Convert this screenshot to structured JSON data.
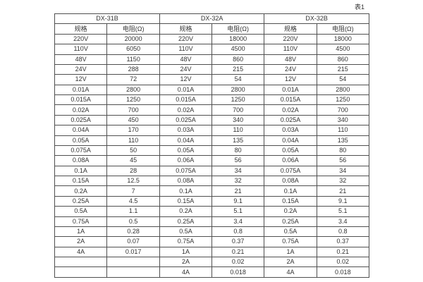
{
  "caption": "表1",
  "colors": {
    "background": "#ffffff",
    "border": "#4f4f4f",
    "text": "#333333"
  },
  "table": {
    "groups": [
      {
        "name": "DX-31B",
        "spec_header": "规格",
        "resistance_header": "电阻(Ω)"
      },
      {
        "name": "DX-32A",
        "spec_header": "规格",
        "resistance_header": "电阻(Ω)"
      },
      {
        "name": "DX-32B",
        "spec_header": "规格",
        "resistance_header": "电阻(Ω)"
      }
    ],
    "rows": [
      [
        "220V",
        "20000",
        "220V",
        "18000",
        "220V",
        "18000"
      ],
      [
        "110V",
        "6050",
        "110V",
        "4500",
        "110V",
        "4500"
      ],
      [
        "48V",
        "1150",
        "48V",
        "860",
        "48V",
        "860"
      ],
      [
        "24V",
        "288",
        "24V",
        "215",
        "24V",
        "215"
      ],
      [
        "12V",
        "72",
        "12V",
        "54",
        "12V",
        "54"
      ],
      [
        "0.01A",
        "2800",
        "0.01A",
        "2800",
        "0.01A",
        "2800"
      ],
      [
        "0.015A",
        "1250",
        "0.015A",
        "1250",
        "0.015A",
        "1250"
      ],
      [
        "0.02A",
        "700",
        "0.02A",
        "700",
        "0.02A",
        "700"
      ],
      [
        "0.025A",
        "450",
        "0.025A",
        "340",
        "0.025A",
        "340"
      ],
      [
        "0.04A",
        "170",
        "0.03A",
        "110",
        "0.03A",
        "110"
      ],
      [
        "0.05A",
        "110",
        "0.04A",
        "135",
        "0.04A",
        "135"
      ],
      [
        "0.075A",
        "50",
        "0.05A",
        "80",
        "0.05A",
        "80"
      ],
      [
        "0.08A",
        "45",
        "0.06A",
        "56",
        "0.06A",
        "56"
      ],
      [
        "0.1A",
        "28",
        "0.075A",
        "34",
        "0.075A",
        "34"
      ],
      [
        "0.15A",
        "12.5",
        "0.08A",
        "32",
        "0.08A",
        "32"
      ],
      [
        "0.2A",
        "7",
        "0.1A",
        "21",
        "0.1A",
        "21"
      ],
      [
        "0.25A",
        "4.5",
        "0.15A",
        "9.1",
        "0.15A",
        "9.1"
      ],
      [
        "0.5A",
        "1.1",
        "0.2A",
        "5.1",
        "0.2A",
        "5.1"
      ],
      [
        "0.75A",
        "0.5",
        "0.25A",
        "3.4",
        "0.25A",
        "3.4"
      ],
      [
        "1A",
        "0.28",
        "0.5A",
        "0.8",
        "0.5A",
        "0.8"
      ],
      [
        "2A",
        "0.07",
        "0.75A",
        "0.37",
        "0.75A",
        "0.37"
      ],
      [
        "4A",
        "0.017",
        "1A",
        "0.21",
        "1A",
        "0.21"
      ],
      [
        "",
        "",
        "2A",
        "0.02",
        "2A",
        "0.02"
      ],
      [
        "",
        "",
        "4A",
        "0.018",
        "4A",
        "0.018"
      ]
    ]
  }
}
